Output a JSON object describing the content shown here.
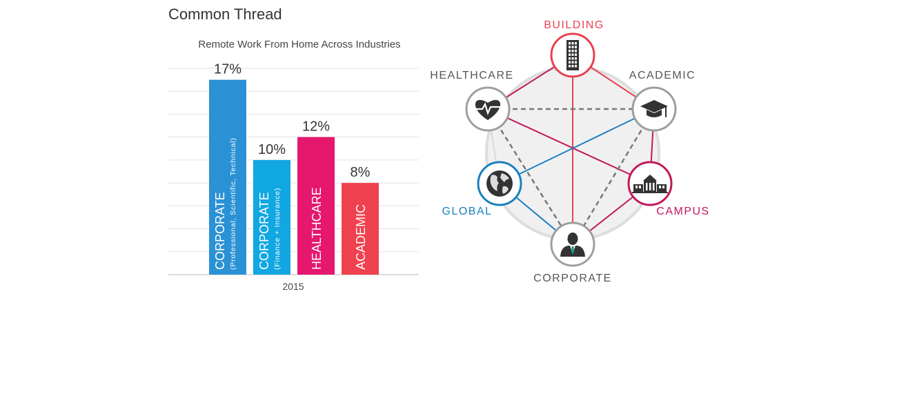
{
  "page": {
    "title": "Common Thread"
  },
  "chart_data": {
    "type": "bar",
    "title": "Remote Work From Home Across Industries",
    "xlabel": "2015",
    "ylabel": "",
    "ylim": [
      0,
      18
    ],
    "grid": true,
    "categories": [
      {
        "name": "CORPORATE",
        "sub": "(Professional, Scientific, Technical)",
        "value": 17,
        "label": "17%",
        "color": "#2b91d5"
      },
      {
        "name": "CORPORATE",
        "sub": "(Finance + Insurance)",
        "value": 10,
        "label": "10%",
        "color": "#11a7e2"
      },
      {
        "name": "HEALTHCARE",
        "sub": "",
        "value": 12,
        "label": "12%",
        "color": "#e5186e"
      },
      {
        "name": "ACADEMIC",
        "sub": "",
        "value": 8,
        "label": "8%",
        "color": "#f0414f"
      }
    ]
  },
  "network": {
    "nodes": [
      {
        "id": "building",
        "label": "BUILDING",
        "icon": "building-icon",
        "ring": "#e8414f",
        "text": "#e8414f"
      },
      {
        "id": "academic",
        "label": "ACADEMIC",
        "icon": "graduation-cap-icon",
        "ring": "#9e9e9e",
        "text": "#555555"
      },
      {
        "id": "campus",
        "label": "CAMPUS",
        "icon": "campus-icon",
        "ring": "#c2185b",
        "text": "#c2185b"
      },
      {
        "id": "corporate",
        "label": "CORPORATE",
        "icon": "businessman-icon",
        "ring": "#9e9e9e",
        "text": "#555555"
      },
      {
        "id": "global",
        "label": "GLOBAL",
        "icon": "globe-icon",
        "ring": "#1a7fc1",
        "text": "#1a7fc1"
      },
      {
        "id": "healthcare",
        "label": "HEALTHCARE",
        "icon": "heart-pulse-icon",
        "ring": "#9e9e9e",
        "text": "#555555"
      }
    ],
    "links": [
      {
        "from": "building",
        "to": "corporate",
        "style": "solid",
        "color": "#e8414f"
      },
      {
        "from": "building",
        "to": "academic",
        "style": "solid",
        "color": "#e8414f"
      },
      {
        "from": "healthcare",
        "to": "academic",
        "style": "dashed",
        "color": "#777777"
      },
      {
        "from": "healthcare",
        "to": "building",
        "style": "solid",
        "color": "#c2185b"
      },
      {
        "from": "healthcare",
        "to": "campus",
        "style": "solid",
        "color": "#c2185b"
      },
      {
        "from": "healthcare",
        "to": "corporate",
        "style": "dashed",
        "color": "#777777"
      },
      {
        "from": "academic",
        "to": "global",
        "style": "solid",
        "color": "#1a7fc1"
      },
      {
        "from": "academic",
        "to": "campus",
        "style": "solid",
        "color": "#c2185b"
      },
      {
        "from": "academic",
        "to": "corporate",
        "style": "dashed",
        "color": "#777777"
      },
      {
        "from": "global",
        "to": "corporate",
        "style": "solid",
        "color": "#1a7fc1"
      },
      {
        "from": "corporate",
        "to": "campus",
        "style": "solid",
        "color": "#c2185b"
      }
    ]
  }
}
